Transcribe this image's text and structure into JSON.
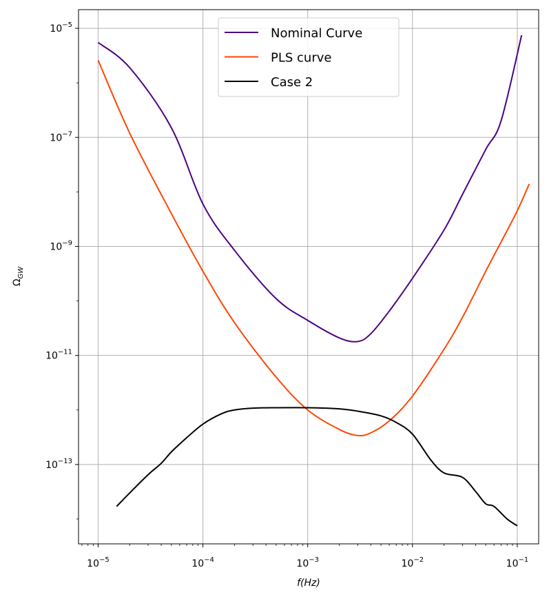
{
  "chart_data": {
    "type": "line",
    "xscale": "log",
    "yscale": "log",
    "xlabel": "f(Hz)",
    "ylabel": "Ω_GW",
    "xlim": [
      6.5e-06,
      0.16
    ],
    "ylim": [
      3.5e-15,
      2.2e-05
    ],
    "grid": true,
    "legend_position": "top-center",
    "x_ticks": [
      {
        "value": 1e-05,
        "base": "10",
        "exp": "−5"
      },
      {
        "value": 0.0001,
        "base": "10",
        "exp": "−4"
      },
      {
        "value": 0.001,
        "base": "10",
        "exp": "−3"
      },
      {
        "value": 0.01,
        "base": "10",
        "exp": "−2"
      },
      {
        "value": 0.1,
        "base": "10",
        "exp": "−1"
      }
    ],
    "y_ticks": [
      {
        "value": 1e-05,
        "base": "10",
        "exp": "−5"
      },
      {
        "value": 1e-07,
        "base": "10",
        "exp": "−7"
      },
      {
        "value": 1e-09,
        "base": "10",
        "exp": "−9"
      },
      {
        "value": 1e-11,
        "base": "10",
        "exp": "−11"
      },
      {
        "value": 1e-13,
        "base": "10",
        "exp": "−13"
      }
    ],
    "series": [
      {
        "name": "Nominal Curve",
        "color": "#4b0082",
        "x": [
          1e-05,
          2e-05,
          5e-05,
          0.0001,
          0.0002,
          0.0005,
          0.001,
          0.002,
          0.003,
          0.004,
          0.006,
          0.01,
          0.02,
          0.03,
          0.05,
          0.07,
          0.11
        ],
        "y": [
          5.5e-06,
          1.9e-06,
          1.5e-07,
          6e-09,
          8.5e-10,
          1.1e-10,
          4.4e-11,
          2.1e-11,
          1.8e-11,
          2.5e-11,
          6.5e-11,
          2.6e-10,
          2e-09,
          9e-09,
          6e-08,
          2e-07,
          7.5e-06
        ]
      },
      {
        "name": "PLS curve",
        "color": "#ff4500",
        "x": [
          1e-05,
          2e-05,
          5e-05,
          0.0001,
          0.0002,
          0.0005,
          0.001,
          0.002,
          0.003,
          0.004,
          0.006,
          0.01,
          0.02,
          0.03,
          0.05,
          0.07,
          0.1,
          0.13
        ],
        "y": [
          2.6e-06,
          1.2e-07,
          4e-09,
          3.5e-10,
          4e-11,
          4e-12,
          1e-12,
          4.4e-13,
          3.4e-13,
          3.8e-13,
          6.3e-13,
          1.8e-12,
          1.3e-11,
          5e-11,
          3.5e-10,
          1.2e-09,
          4.5e-09,
          1.4e-08
        ]
      },
      {
        "name": "Case 2",
        "color": "#000000",
        "x": [
          1.5e-05,
          2e-05,
          3e-05,
          4e-05,
          5e-05,
          7e-05,
          0.0001,
          0.00015,
          0.0002,
          0.0003,
          0.0005,
          0.001,
          0.002,
          0.003,
          0.005,
          0.007,
          0.01,
          0.015,
          0.02,
          0.03,
          0.04,
          0.05,
          0.06,
          0.08,
          0.1
        ],
        "y": [
          1.7e-14,
          3e-14,
          6.5e-14,
          1.05e-13,
          1.7e-13,
          3.1e-13,
          5.5e-13,
          8.5e-13,
          1e-12,
          1.08e-12,
          1.1e-12,
          1.1e-12,
          1.05e-12,
          9.5e-13,
          7.8e-13,
          5.9e-13,
          3.6e-13,
          1.2e-13,
          7e-14,
          5.8e-14,
          3.2e-14,
          1.9e-14,
          1.7e-14,
          1e-14,
          7.5e-15
        ]
      }
    ]
  }
}
